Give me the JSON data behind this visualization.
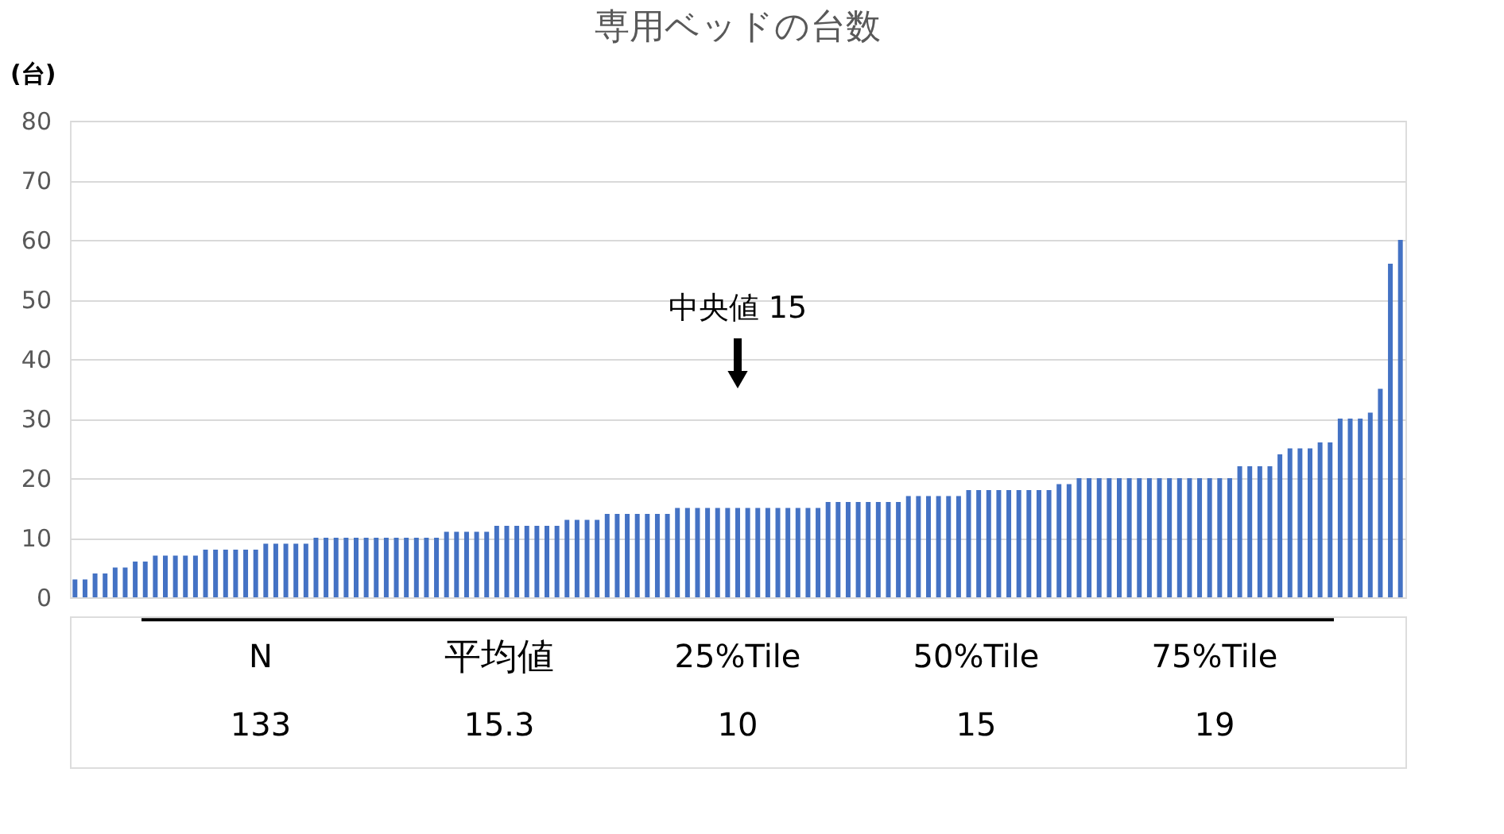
{
  "chart_data": {
    "type": "bar",
    "title": "専用ベッドの台数",
    "ylabel": "(台)",
    "categories": [
      null,
      null,
      null,
      null,
      null,
      null,
      null,
      null,
      null,
      null,
      null,
      null,
      null,
      null,
      null,
      null,
      null,
      null,
      null,
      null,
      null,
      null,
      null,
      null,
      null,
      null,
      null,
      null,
      null,
      null,
      null,
      null,
      null,
      null,
      null,
      null,
      null,
      null,
      null,
      null,
      null,
      null,
      null,
      null,
      null,
      null,
      null,
      null,
      null,
      null,
      null,
      null,
      null,
      null,
      null,
      null,
      null,
      null,
      null,
      null,
      null,
      null,
      null,
      null,
      null,
      null,
      null,
      null,
      null,
      null,
      null,
      null,
      null,
      null,
      null,
      null,
      null,
      null,
      null,
      null,
      null,
      null,
      null,
      null,
      null,
      null,
      null,
      null,
      null,
      null,
      null,
      null,
      null,
      null,
      null,
      null,
      null,
      null,
      null,
      null,
      null,
      null,
      null,
      null,
      null,
      null,
      null,
      null,
      null,
      null,
      null,
      null,
      null,
      null,
      null,
      null,
      null,
      null,
      null,
      null,
      null,
      null,
      null,
      null,
      null,
      null,
      null,
      null,
      null,
      null,
      null,
      null,
      null
    ],
    "values": [
      3,
      3,
      4,
      4,
      5,
      5,
      6,
      6,
      7,
      7,
      7,
      7,
      7,
      8,
      8,
      8,
      8,
      8,
      8,
      9,
      9,
      9,
      9,
      9,
      10,
      10,
      10,
      10,
      10,
      10,
      10,
      10,
      10,
      10,
      10,
      10,
      10,
      11,
      11,
      11,
      11,
      11,
      12,
      12,
      12,
      12,
      12,
      12,
      12,
      13,
      13,
      13,
      13,
      14,
      14,
      14,
      14,
      14,
      14,
      14,
      15,
      15,
      15,
      15,
      15,
      15,
      15,
      15,
      15,
      15,
      15,
      15,
      15,
      15,
      15,
      16,
      16,
      16,
      16,
      16,
      16,
      16,
      16,
      17,
      17,
      17,
      17,
      17,
      17,
      18,
      18,
      18,
      18,
      18,
      18,
      18,
      18,
      18,
      19,
      19,
      20,
      20,
      20,
      20,
      20,
      20,
      20,
      20,
      20,
      20,
      20,
      20,
      20,
      20,
      20,
      20,
      22,
      22,
      22,
      22,
      24,
      25,
      25,
      25,
      26,
      26,
      30,
      30,
      30,
      31,
      35,
      56,
      60
    ],
    "color": "#4472c4",
    "ylim": [
      0,
      80
    ],
    "yticks": [
      0,
      10,
      20,
      30,
      40,
      50,
      60,
      70,
      80
    ],
    "grid": "y",
    "annotations": [
      "中央値 15",
      "N",
      "平均値",
      "25%Tile",
      "50%Tile",
      "75%Tile",
      "133",
      "15.3",
      "10",
      "15",
      "19"
    ]
  }
}
